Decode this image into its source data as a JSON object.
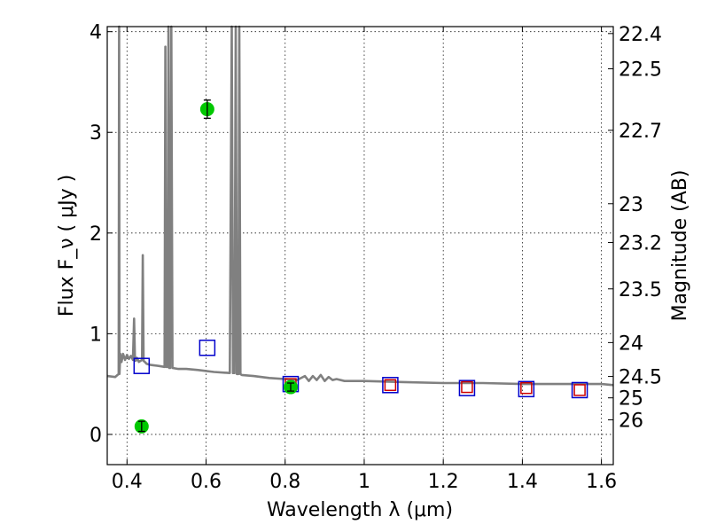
{
  "chart_data": {
    "type": "scatter",
    "xlabel": "Wavelength  λ (μm)",
    "ylabel": "Flux  F_ν  ( μJy )",
    "ylabel_right": "Magnitude (AB)",
    "xlim": [
      0.35,
      1.63
    ],
    "ylim": [
      -0.3,
      4.05
    ],
    "grid": true,
    "x_ticks": [
      {
        "value": 0.4,
        "label": "0.4"
      },
      {
        "value": 0.6,
        "label": "0.6"
      },
      {
        "value": 0.8,
        "label": "0.8"
      },
      {
        "value": 1.0,
        "label": "1"
      },
      {
        "value": 1.2,
        "label": "1.2"
      },
      {
        "value": 1.4,
        "label": "1.4"
      },
      {
        "value": 1.6,
        "label": "1.6"
      }
    ],
    "y_ticks": [
      {
        "value": 0,
        "label": "0"
      },
      {
        "value": 1,
        "label": "1"
      },
      {
        "value": 2,
        "label": "2"
      },
      {
        "value": 3,
        "label": "3"
      },
      {
        "value": 4,
        "label": "4"
      }
    ],
    "right_ticks": [
      {
        "mag": 22.4,
        "label": "22.4"
      },
      {
        "mag": 22.5,
        "label": "22.5"
      },
      {
        "mag": 22.7,
        "label": "22.7"
      },
      {
        "mag": 23,
        "label": "23"
      },
      {
        "mag": 23.2,
        "label": "23.2"
      },
      {
        "mag": 23.5,
        "label": "23.5"
      },
      {
        "mag": 24,
        "label": "24"
      },
      {
        "mag": 24.5,
        "label": "24.5"
      },
      {
        "mag": 25,
        "label": "25"
      },
      {
        "mag": 26,
        "label": "26"
      }
    ],
    "series": [
      {
        "kind": "line",
        "color": "#808080",
        "x": [
          0.35,
          0.37,
          0.379,
          0.38,
          0.381,
          0.383,
          0.386,
          0.39,
          0.395,
          0.4,
          0.405,
          0.41,
          0.415,
          0.418,
          0.42,
          0.422,
          0.425,
          0.43,
          0.438,
          0.44,
          0.442,
          0.445,
          0.45,
          0.46,
          0.48,
          0.495,
          0.497,
          0.499,
          0.503,
          0.505,
          0.507,
          0.509,
          0.512,
          0.515,
          0.53,
          0.55,
          0.58,
          0.62,
          0.66,
          0.665,
          0.668,
          0.672,
          0.675,
          0.678,
          0.682,
          0.684,
          0.687,
          0.69,
          0.72,
          0.76,
          0.8,
          0.83,
          0.85,
          0.86,
          0.87,
          0.88,
          0.89,
          0.9,
          0.91,
          0.92,
          0.93,
          0.95,
          1.0,
          1.1,
          1.2,
          1.3,
          1.4,
          1.5,
          1.6,
          1.63
        ],
        "y": [
          0.58,
          0.57,
          0.6,
          4.05,
          0.6,
          0.8,
          0.72,
          0.8,
          0.74,
          0.79,
          0.75,
          0.78,
          0.74,
          1.15,
          0.78,
          0.73,
          0.76,
          0.72,
          0.74,
          1.78,
          0.73,
          0.72,
          0.7,
          0.69,
          0.68,
          0.67,
          3.85,
          0.67,
          0.67,
          4.05,
          0.66,
          0.66,
          4.05,
          0.66,
          0.65,
          0.65,
          0.64,
          0.62,
          0.61,
          4.05,
          0.61,
          0.61,
          4.05,
          0.6,
          0.6,
          4.05,
          0.6,
          0.59,
          0.58,
          0.56,
          0.55,
          0.54,
          0.58,
          0.53,
          0.58,
          0.54,
          0.59,
          0.53,
          0.57,
          0.54,
          0.55,
          0.53,
          0.53,
          0.52,
          0.51,
          0.51,
          0.5,
          0.5,
          0.5,
          0.49
        ]
      },
      {
        "kind": "open-square",
        "color": "#0000cc",
        "x": [
          0.437,
          0.603,
          0.814,
          1.066,
          1.26,
          1.41,
          1.545
        ],
        "y": [
          0.68,
          0.86,
          0.5,
          0.49,
          0.46,
          0.45,
          0.44
        ]
      },
      {
        "kind": "open-square",
        "color": "#cc0000",
        "x": [
          0.814,
          1.066,
          1.26,
          1.41,
          1.545
        ],
        "y": [
          0.5,
          0.49,
          0.47,
          0.46,
          0.44
        ]
      },
      {
        "kind": "filled-circle",
        "color": "#00c800",
        "x": [
          0.437,
          0.603,
          0.814
        ],
        "y": [
          0.08,
          3.23,
          0.47
        ],
        "yerr": [
          0.05,
          0.09,
          0.04
        ]
      }
    ]
  }
}
